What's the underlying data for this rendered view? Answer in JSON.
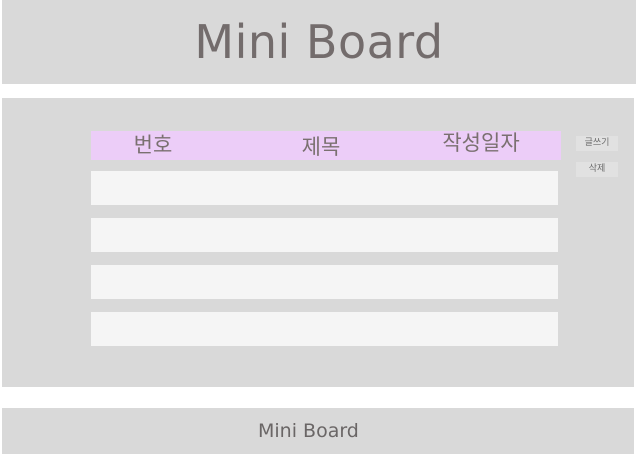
{
  "header": {
    "title": "Mini Board"
  },
  "table": {
    "columns": [
      "번호",
      "제목",
      "작성일자"
    ],
    "rows": [
      [
        "",
        "",
        ""
      ],
      [
        "",
        "",
        ""
      ],
      [
        "",
        "",
        ""
      ],
      [
        "",
        "",
        ""
      ]
    ]
  },
  "actions": {
    "write_label": "글쓰기",
    "delete_label": "삭제"
  },
  "footer": {
    "text": "Mini Board"
  },
  "colors": {
    "panel_bg": "#d9d9d9",
    "table_header_bg": "#eccdf8",
    "row_bg": "#f5f5f5",
    "text": "#736c6c"
  }
}
